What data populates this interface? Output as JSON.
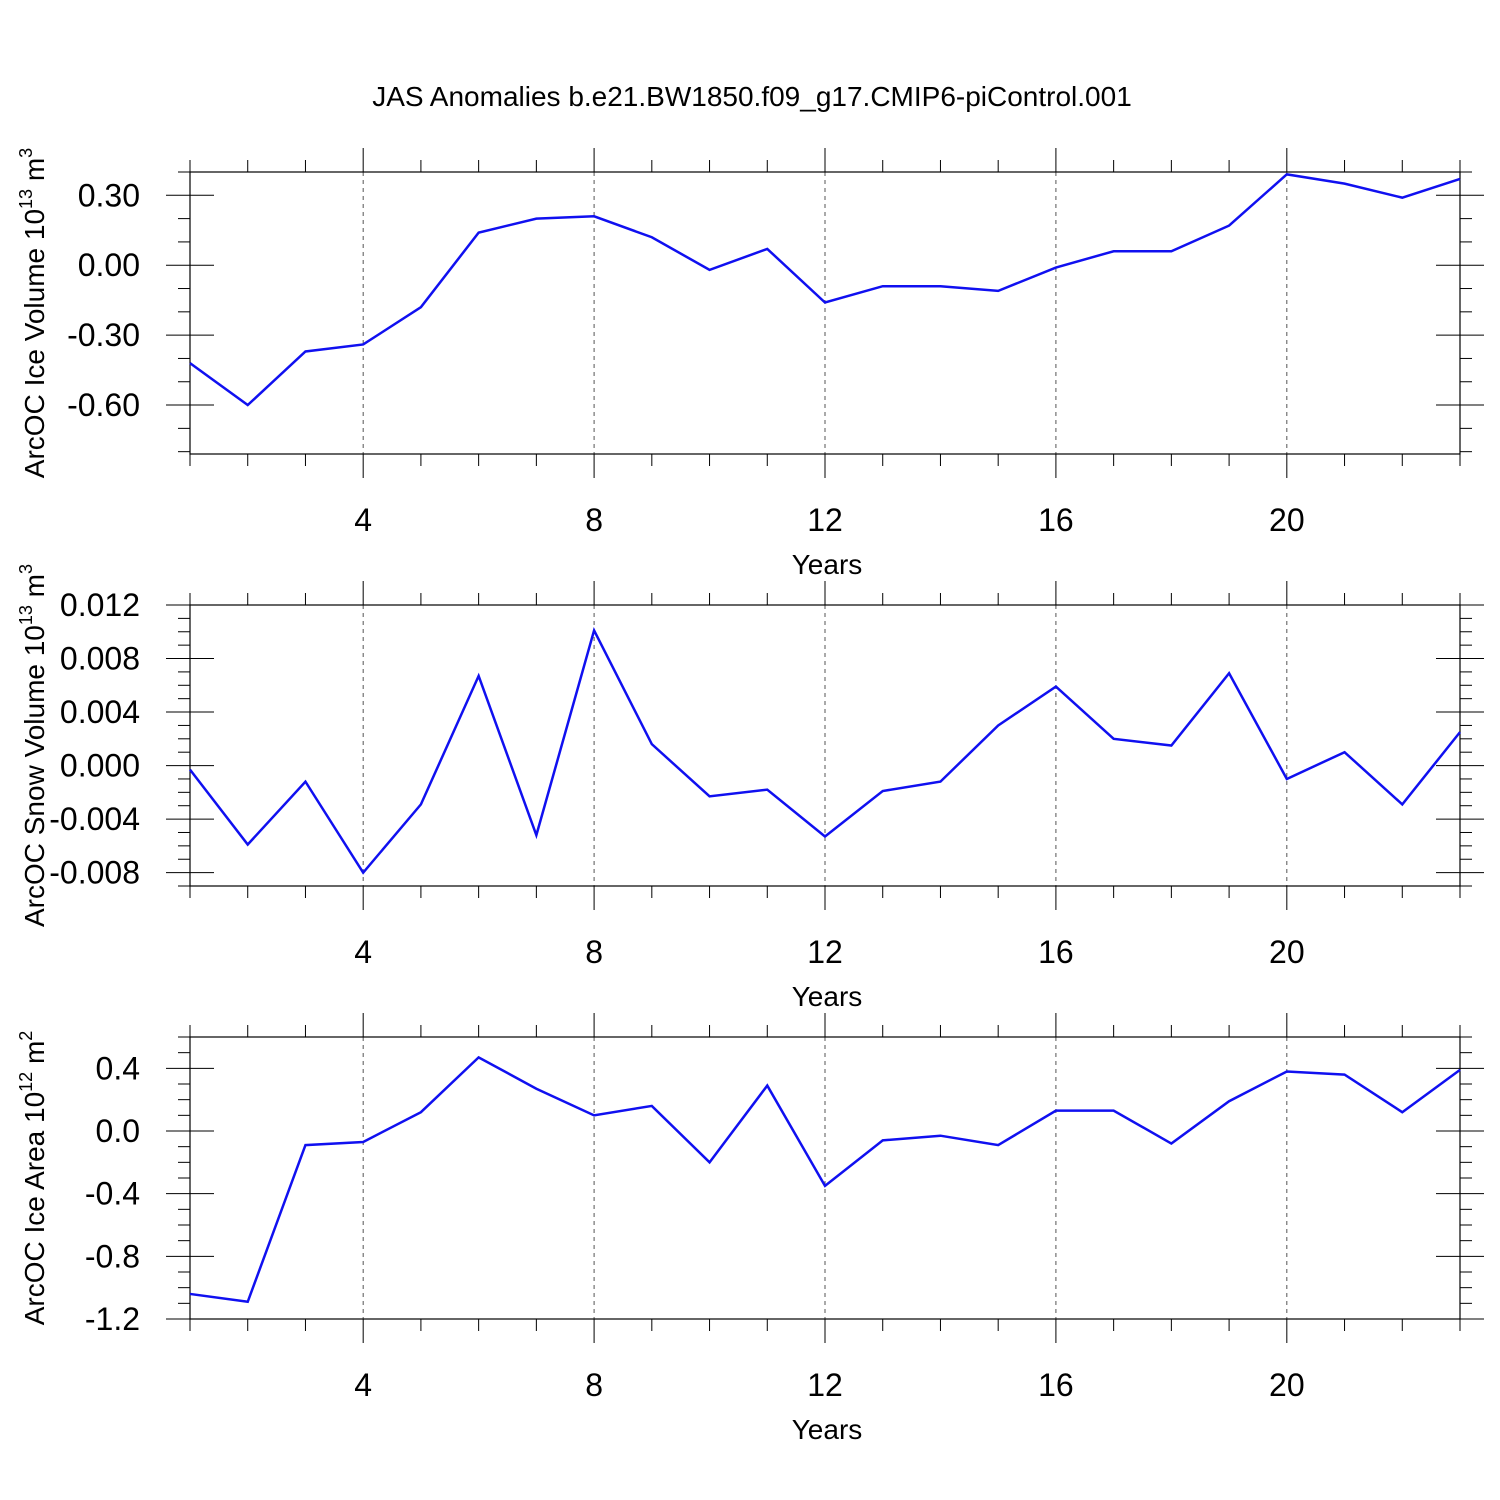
{
  "figure": {
    "title": "JAS Anomalies b.e21.BW1850.f09_g17.CMIP6-piControl.001"
  },
  "chart_data": [
    {
      "type": "line",
      "xlabel": "Years",
      "ylabel": "ArcOC Ice Volume 10",
      "ylabel_exp": "13",
      "ylabel_unit": " m",
      "ylabel_unit_exp": "3",
      "xlim": [
        1,
        23
      ],
      "ylim": [
        -0.81,
        0.4
      ],
      "xticks": [
        4,
        8,
        12,
        16,
        20
      ],
      "xtick_labels": [
        "4",
        "8",
        "12",
        "16",
        "20"
      ],
      "xminor_step": 1,
      "yticks": [
        -0.6,
        -0.3,
        0.0,
        0.3
      ],
      "ytick_labels": [
        "-0.60",
        "-0.30",
        "0.00",
        "0.30"
      ],
      "yminor_step": 0.1,
      "grid": "vertical-dashed",
      "color": "#1010f0",
      "x": [
        1,
        2,
        3,
        4,
        5,
        6,
        7,
        8,
        9,
        10,
        11,
        12,
        13,
        14,
        15,
        16,
        17,
        18,
        19,
        20,
        21,
        22,
        23
      ],
      "values": [
        -0.42,
        -0.6,
        -0.37,
        -0.34,
        -0.18,
        0.14,
        0.2,
        0.21,
        0.12,
        -0.02,
        0.07,
        -0.16,
        -0.09,
        -0.09,
        -0.11,
        -0.01,
        0.06,
        0.06,
        0.17,
        0.39,
        0.35,
        0.29,
        0.37
      ]
    },
    {
      "type": "line",
      "xlabel": "Years",
      "ylabel": "ArcOC Snow Volume 10",
      "ylabel_exp": "13",
      "ylabel_unit": " m",
      "ylabel_unit_exp": "3",
      "xlim": [
        1,
        23
      ],
      "ylim": [
        -0.009,
        0.012
      ],
      "xticks": [
        4,
        8,
        12,
        16,
        20
      ],
      "xtick_labels": [
        "4",
        "8",
        "12",
        "16",
        "20"
      ],
      "xminor_step": 1,
      "yticks": [
        -0.008,
        -0.004,
        0.0,
        0.004,
        0.008,
        0.012
      ],
      "ytick_labels": [
        "-0.008",
        "-0.004",
        "0.000",
        "0.004",
        "0.008",
        "0.012"
      ],
      "yminor_step": 0.001,
      "grid": "vertical-dashed",
      "color": "#1010f0",
      "x": [
        1,
        2,
        3,
        4,
        5,
        6,
        7,
        8,
        9,
        10,
        11,
        12,
        13,
        14,
        15,
        16,
        17,
        18,
        19,
        20,
        21,
        22,
        23
      ],
      "values": [
        -0.0003,
        -0.0059,
        -0.0012,
        -0.008,
        -0.0029,
        0.0067,
        -0.0052,
        0.0101,
        0.0016,
        -0.0023,
        -0.0018,
        -0.0053,
        -0.0019,
        -0.0012,
        0.003,
        0.0059,
        0.002,
        0.0015,
        0.0069,
        -0.001,
        0.001,
        -0.0029,
        0.0025
      ]
    },
    {
      "type": "line",
      "xlabel": "Years",
      "ylabel": "ArcOC Ice Area 10",
      "ylabel_exp": "12",
      "ylabel_unit": " m",
      "ylabel_unit_exp": "2",
      "xlim": [
        1,
        23
      ],
      "ylim": [
        -1.2,
        0.6
      ],
      "xticks": [
        4,
        8,
        12,
        16,
        20
      ],
      "xtick_labels": [
        "4",
        "8",
        "12",
        "16",
        "20"
      ],
      "xminor_step": 1,
      "yticks": [
        -1.2,
        -0.8,
        -0.4,
        0.0,
        0.4
      ],
      "ytick_labels": [
        "-1.2",
        "-0.8",
        "-0.4",
        "0.0",
        "0.4"
      ],
      "yminor_step": 0.1,
      "grid": "vertical-dashed",
      "color": "#1010f0",
      "x": [
        1,
        2,
        3,
        4,
        5,
        6,
        7,
        8,
        9,
        10,
        11,
        12,
        13,
        14,
        15,
        16,
        17,
        18,
        19,
        20,
        21,
        22,
        23
      ],
      "values": [
        -1.04,
        -1.09,
        -0.09,
        -0.07,
        0.12,
        0.47,
        0.27,
        0.1,
        0.16,
        -0.2,
        0.29,
        -0.35,
        -0.06,
        -0.03,
        -0.09,
        0.13,
        0.13,
        -0.08,
        0.19,
        0.38,
        0.36,
        0.12,
        0.39
      ]
    }
  ]
}
